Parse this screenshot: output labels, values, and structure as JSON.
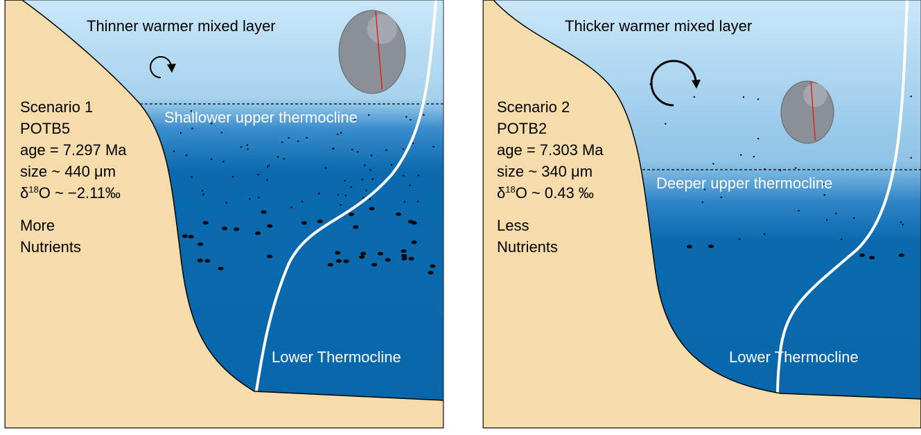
{
  "panels": [
    {
      "mixed_layer": "Thinner warmer mixed layer",
      "upper_thermocline": "Shallower upper thermocline",
      "lower_thermocline": "Lower Thermocline",
      "info": [
        "Scenario 1",
        "POTB5",
        "age = 7.297 Ma",
        "size ~ 440 μm"
      ],
      "isotope": {
        "symbol": "δ",
        "superscript": "18",
        "rest": "O ~ −2.11‰"
      },
      "nutrients": [
        "More",
        "Nutrients"
      ]
    },
    {
      "mixed_layer": "Thicker warmer mixed layer",
      "upper_thermocline": "Deeper upper thermocline",
      "lower_thermocline": "Lower Thermocline",
      "info": [
        "Scenario 2",
        "POTB2",
        "age = 7.303 Ma",
        "size ~ 340 μm"
      ],
      "isotope": {
        "symbol": "δ",
        "superscript": "18",
        "rest": "O ~ 0.43 ‰"
      },
      "nutrients": [
        "Less",
        "Nutrients"
      ]
    }
  ]
}
